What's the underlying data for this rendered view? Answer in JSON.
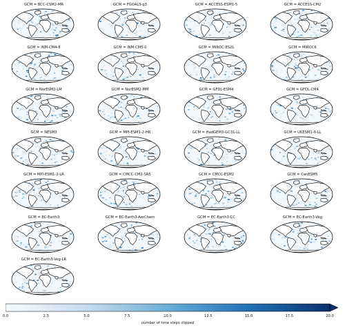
{
  "panel_prefix": "GCM = ",
  "models": [
    "BCC-CSM2-MR",
    "FGOALS-g3",
    "ACCESS-ESM1-5",
    "ACCESS-CM2",
    "INM-CM4-8",
    "INM-CM5-0",
    "MIROC-ES2L",
    "MIROC6",
    "NorESM2-LM",
    "NorESM2-MM",
    "GFDL-ESM4",
    "GFDL-CM4",
    "NESM3",
    "MPI-ESM1-2-HR",
    "HadGEM3-GC31-LL",
    "UKESM1-0-LL",
    "MPI-ESM1-2-LR",
    "CMCC-CM2-SR5",
    "CMCC-ESM2",
    "CanESM5",
    "EC-Earth3",
    "EC-Earth3-AerChem",
    "EC-Earth3-CC",
    "EC-Earth3-Veg",
    "EC-Earth3-Veg-LR"
  ],
  "colorbar": {
    "label": "number of time steps clipped",
    "ticks": [
      "0.0",
      "2.5",
      "5.0",
      "7.5",
      "10.0",
      "12.5",
      "15.0",
      "17.5",
      "20.0"
    ],
    "min": 0,
    "max": 20,
    "extend": "max",
    "colormap": "Blues",
    "color_low": "#f7fbff",
    "color_high": "#08306b"
  },
  "map": {
    "projection": "Robinson",
    "land_color": "#ffffff",
    "coastline_color": "#000000"
  }
}
